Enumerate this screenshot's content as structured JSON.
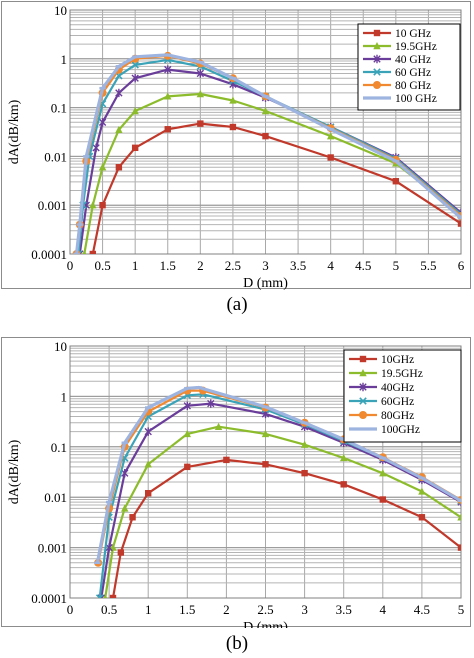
{
  "chart_data": [
    {
      "type": "line",
      "caption": "(a)",
      "xlabel": "D (mm)",
      "ylabel": "dA(dB/km)",
      "log_y": true,
      "grid": true,
      "legend_position": "top-right",
      "xlim": [
        0,
        6
      ],
      "ylim": [
        0.0001,
        10
      ],
      "x_ticks": [
        "0",
        "0.5",
        "1",
        "1.5",
        "2",
        "2.5",
        "3",
        "3.5",
        "4",
        "4.5",
        "5",
        "5.5",
        "6"
      ],
      "y_ticks": [
        "0.0001",
        "0.001",
        "0.01",
        "0.1",
        "1",
        "10"
      ],
      "series": [
        {
          "name": "10 GHz",
          "color": "#c0392b",
          "marker": "square",
          "x": [
            0.35,
            0.5,
            0.75,
            1.0,
            1.5,
            2.0,
            2.5,
            3.0,
            4.0,
            5.0,
            6.0
          ],
          "y": [
            0.0001,
            0.001,
            0.006,
            0.015,
            0.036,
            0.047,
            0.04,
            0.026,
            0.0095,
            0.0031,
            0.00042
          ]
        },
        {
          "name": "19.5GHz",
          "color": "#8cbc2c",
          "marker": "triangle",
          "x": [
            0.22,
            0.35,
            0.5,
            0.75,
            1.0,
            1.5,
            2.0,
            2.5,
            3.0,
            4.0,
            5.0,
            6.0
          ],
          "y": [
            0.0001,
            0.001,
            0.006,
            0.035,
            0.085,
            0.17,
            0.19,
            0.14,
            0.085,
            0.026,
            0.0072,
            0.00065
          ]
        },
        {
          "name": "40 GHz",
          "color": "#6a3d9a",
          "marker": "cross",
          "x": [
            0.15,
            0.25,
            0.4,
            0.5,
            0.75,
            1.0,
            1.5,
            2.0,
            2.5,
            3.0,
            4.0,
            5.0,
            6.0
          ],
          "y": [
            0.0001,
            0.001,
            0.015,
            0.05,
            0.2,
            0.4,
            0.6,
            0.5,
            0.3,
            0.16,
            0.04,
            0.0095,
            0.0007
          ]
        },
        {
          "name": "60 GHz",
          "color": "#3aa3b8",
          "marker": "x",
          "x": [
            0.13,
            0.2,
            0.3,
            0.5,
            0.75,
            1.0,
            1.5,
            2.0,
            2.5,
            3.0,
            4.0,
            5.0,
            6.0
          ],
          "y": [
            0.0001,
            0.001,
            0.01,
            0.12,
            0.45,
            0.75,
            0.95,
            0.7,
            0.35,
            0.17,
            0.04,
            0.009,
            0.00065
          ]
        },
        {
          "name": "80 GHz",
          "color": "#f0892f",
          "marker": "circle",
          "x": [
            0.1,
            0.15,
            0.25,
            0.5,
            0.75,
            1.0,
            1.5,
            2.0,
            2.5,
            3.0,
            4.0,
            5.0,
            6.0
          ],
          "y": [
            0.0001,
            0.0004,
            0.008,
            0.2,
            0.6,
            1.0,
            1.15,
            0.8,
            0.4,
            0.17,
            0.038,
            0.0085,
            0.0006
          ]
        },
        {
          "name": "100 GHz",
          "color": "#9db3e0",
          "marker": "line",
          "x": [
            0.1,
            0.15,
            0.25,
            0.5,
            0.75,
            1.0,
            1.5,
            2.0,
            2.5,
            3.0,
            4.0,
            5.0,
            6.0
          ],
          "y": [
            0.0001,
            0.0004,
            0.01,
            0.25,
            0.7,
            1.1,
            1.2,
            0.85,
            0.4,
            0.17,
            0.036,
            0.008,
            0.00055
          ]
        }
      ]
    },
    {
      "type": "line",
      "caption": "(b)",
      "xlabel": "D (mm)",
      "ylabel": "dA(dB/km)",
      "log_y": true,
      "grid": true,
      "legend_position": "top-right",
      "xlim": [
        0,
        5
      ],
      "ylim": [
        0.0001,
        10
      ],
      "x_ticks": [
        "0",
        "0.5",
        "1",
        "1.5",
        "2",
        "2.5",
        "3",
        "3.5",
        "4",
        "4.5",
        "5"
      ],
      "y_ticks": [
        "0.0001",
        "0.001",
        "0.01",
        "0.1",
        "1",
        "10"
      ],
      "series": [
        {
          "name": "10GHz",
          "color": "#c0392b",
          "marker": "square",
          "x": [
            0.55,
            0.65,
            0.8,
            1.0,
            1.5,
            2.0,
            2.5,
            3.0,
            3.5,
            4.0,
            4.5,
            5.0
          ],
          "y": [
            0.0001,
            0.0008,
            0.004,
            0.012,
            0.04,
            0.055,
            0.045,
            0.03,
            0.018,
            0.009,
            0.004,
            0.001
          ]
        },
        {
          "name": "19.5GHz",
          "color": "#8cbc2c",
          "marker": "triangle",
          "x": [
            0.45,
            0.55,
            0.7,
            1.0,
            1.5,
            1.9,
            2.5,
            3.0,
            3.5,
            4.0,
            4.5,
            5.0
          ],
          "y": [
            0.0001,
            0.001,
            0.006,
            0.045,
            0.18,
            0.25,
            0.18,
            0.11,
            0.06,
            0.03,
            0.013,
            0.004
          ]
        },
        {
          "name": "40GHz",
          "color": "#6a3d9a",
          "marker": "cross",
          "x": [
            0.4,
            0.5,
            0.7,
            1.0,
            1.5,
            1.8,
            2.5,
            3.0,
            3.5,
            4.0,
            4.5,
            5.0
          ],
          "y": [
            0.0001,
            0.001,
            0.03,
            0.2,
            0.65,
            0.72,
            0.45,
            0.25,
            0.12,
            0.055,
            0.022,
            0.008
          ]
        },
        {
          "name": "60GHz",
          "color": "#3aa3b8",
          "marker": "x",
          "x": [
            0.38,
            0.5,
            0.7,
            1.0,
            1.5,
            1.7,
            2.5,
            3.0,
            3.5,
            4.0,
            4.5,
            5.0
          ],
          "y": [
            0.0001,
            0.004,
            0.06,
            0.4,
            1.05,
            1.1,
            0.55,
            0.28,
            0.13,
            0.06,
            0.024,
            0.0085
          ]
        },
        {
          "name": "80GHz",
          "color": "#f0892f",
          "marker": "circle",
          "x": [
            0.36,
            0.5,
            0.7,
            1.0,
            1.5,
            1.7,
            2.5,
            3.0,
            3.5,
            4.0,
            4.5,
            5.0
          ],
          "y": [
            0.0005,
            0.006,
            0.1,
            0.5,
            1.3,
            1.3,
            0.6,
            0.3,
            0.14,
            0.062,
            0.025,
            0.0088
          ]
        },
        {
          "name": "100GHz",
          "color": "#9db3e0",
          "marker": "line",
          "x": [
            0.35,
            0.5,
            0.7,
            1.0,
            1.5,
            1.65,
            2.5,
            3.0,
            3.5,
            4.0,
            4.5,
            5.0
          ],
          "y": [
            0.0005,
            0.008,
            0.12,
            0.6,
            1.45,
            1.5,
            0.62,
            0.3,
            0.14,
            0.06,
            0.024,
            0.0085
          ]
        }
      ]
    }
  ]
}
